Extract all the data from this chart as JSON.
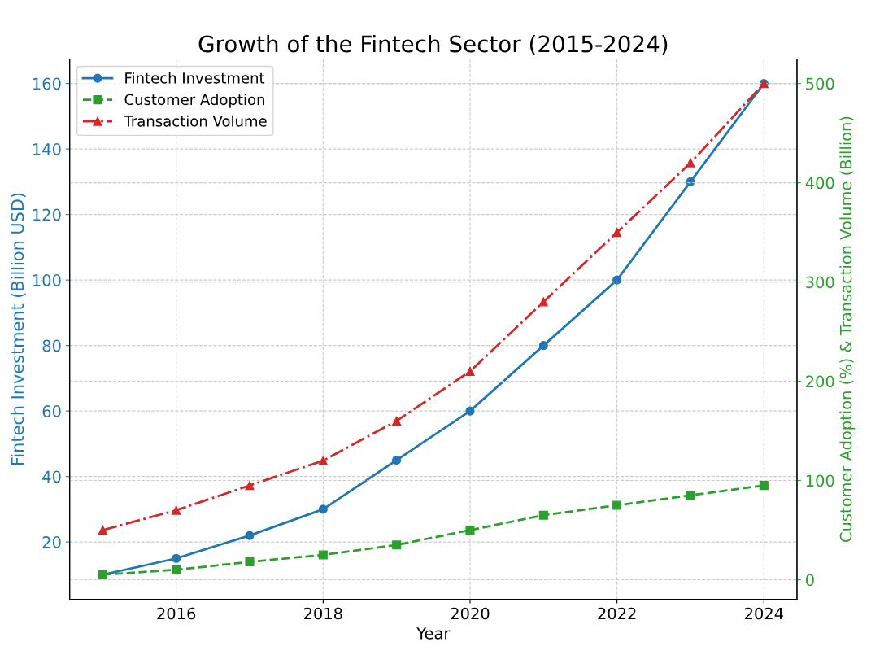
{
  "chart_data": {
    "type": "line",
    "title": "Growth of the Fintech Sector (2015-2024)",
    "xlabel": "Year",
    "ylabel": "Fintech Investment (Billion USD)",
    "y2label": "Customer Adoption (%) & Transaction Volume (Billion)",
    "x": [
      2015,
      2016,
      2017,
      2018,
      2019,
      2020,
      2021,
      2022,
      2023,
      2024
    ],
    "series": [
      {
        "name": "Fintech Investment",
        "color": "#1f77b4",
        "marker": "circle",
        "line_style": "solid",
        "values": [
          10,
          15,
          22,
          30,
          45,
          60,
          80,
          100,
          130,
          160
        ]
      },
      {
        "name": "Customer Adoption",
        "color": "#2ca02c",
        "marker": "square",
        "line_style": "dashed",
        "axis": "y2",
        "values": [
          5,
          10,
          18,
          25,
          35,
          50,
          65,
          75,
          85,
          95
        ]
      },
      {
        "name": "Transaction Volume",
        "color": "#d62728",
        "marker": "triangle",
        "line_style": "dashdot",
        "axis": "y2",
        "values": [
          50,
          70,
          95,
          120,
          160,
          210,
          280,
          350,
          420,
          500
        ]
      }
    ],
    "xlim": [
      2014.55,
      2024.45
    ],
    "xticks": [
      2016,
      2018,
      2020,
      2022,
      2024
    ],
    "ylim": [
      2.5,
      167.5
    ],
    "yticks": [
      20,
      40,
      60,
      80,
      100,
      120,
      140,
      160
    ],
    "y2lim": [
      -19.75,
      524.75
    ],
    "y2ticks": [
      0,
      100,
      200,
      300,
      400,
      500
    ],
    "grid": true,
    "legend": "top left"
  }
}
